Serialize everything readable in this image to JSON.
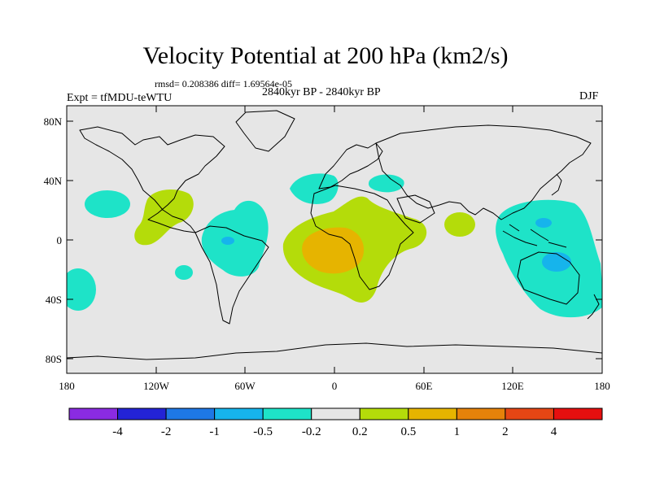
{
  "title": "Velocity Potential at 200 hPa (km2/s)",
  "stats": "rmsd= 0.208386 diff= 1.69564e-05",
  "experiment": "Expt = tfMDU-teWTU",
  "period": "2840kyr BP - 2840kyr BP",
  "season": "DJF",
  "lat_ticks": [
    "80N",
    "40N",
    "0",
    "40S",
    "80S"
  ],
  "lon_ticks": [
    "180",
    "120W",
    "60W",
    "0",
    "60E",
    "120E",
    "180"
  ],
  "colorbar": {
    "labels": [
      "-4",
      "-2",
      "-1",
      "-0.5",
      "-0.2",
      "0.2",
      "0.5",
      "1",
      "2",
      "4"
    ],
    "colors": [
      "#8a2be2",
      "#2323d6",
      "#1e78e6",
      "#16b4ec",
      "#1ee3c8",
      "#e6e6e6",
      "#b4dc0a",
      "#e6b400",
      "#e6820a",
      "#e64614",
      "#e60f0f"
    ]
  },
  "colors": {
    "background": "#e6e6e6",
    "neg_weak": "#1ee3c8",
    "neg_mid": "#16b4ec",
    "pos_weak": "#b4dc0a",
    "pos_mid": "#e6b400"
  }
}
